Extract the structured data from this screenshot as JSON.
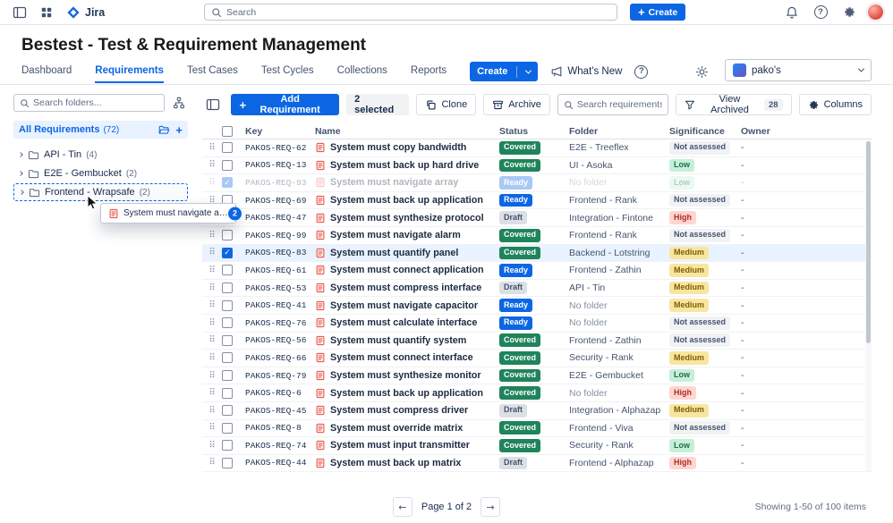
{
  "topnav": {
    "app_name": "Jira",
    "search_placeholder": "Search",
    "create_label": "Create"
  },
  "header": {
    "title": "Bestest - Test & Requirement Management",
    "tabs": [
      {
        "label": "Dashboard",
        "active": false
      },
      {
        "label": "Requirements",
        "active": true
      },
      {
        "label": "Test Cases",
        "active": false
      },
      {
        "label": "Test Cycles",
        "active": false
      },
      {
        "label": "Collections",
        "active": false
      },
      {
        "label": "Reports",
        "active": false
      }
    ],
    "create_label": "Create",
    "whats_new_label": "What's New",
    "profile_label": "pako's"
  },
  "sidebar": {
    "search_placeholder": "Search folders...",
    "root": {
      "label": "All Requirements",
      "count": "(72)"
    },
    "folders": [
      {
        "label": "API - Tin",
        "count": "(4)",
        "drop_target": false
      },
      {
        "label": "E2E - Gembucket",
        "count": "(2)",
        "drop_target": false
      },
      {
        "label": "Frontend - Wrapsafe",
        "count": "(2)",
        "drop_target": true
      }
    ],
    "drag_preview": {
      "label": "System must navigate ar...",
      "badge": "2"
    }
  },
  "toolbar": {
    "add_label": "Add Requirement",
    "selected_label": "2 selected",
    "clone_label": "Clone",
    "archive_label": "Archive",
    "search_placeholder": "Search requirements...",
    "view_archived_label": "View Archived",
    "view_archived_count": "28",
    "columns_label": "Columns"
  },
  "table": {
    "headers": {
      "key": "Key",
      "name": "Name",
      "status": "Status",
      "folder": "Folder",
      "significance": "Significance",
      "owner": "Owner"
    },
    "rows": [
      {
        "key": "PAKOS-REQ-62",
        "name": "System must copy bandwidth",
        "status": "Covered",
        "folder": "E2E - Treeflex",
        "significance": "Not assessed",
        "owner": "-"
      },
      {
        "key": "PAKOS-REQ-13",
        "name": "System must back up hard drive",
        "status": "Covered",
        "folder": "UI - Asoka",
        "significance": "Low",
        "owner": "-"
      },
      {
        "key": "PAKOS-REQ-93",
        "name": "System must navigate array",
        "status": "Ready",
        "folder": "No folder",
        "significance": "Low",
        "owner": "-",
        "checked": true,
        "ghost": true
      },
      {
        "key": "PAKOS-REQ-69",
        "name": "System must back up application",
        "status": "Ready",
        "folder": "Frontend - Rank",
        "significance": "Not assessed",
        "owner": "-"
      },
      {
        "key": "PAKOS-REQ-47",
        "name": "System must synthesize protocol",
        "status": "Draft",
        "folder": "Integration - Fintone",
        "significance": "High",
        "owner": "-"
      },
      {
        "key": "PAKOS-REQ-99",
        "name": "System must navigate alarm",
        "status": "Covered",
        "folder": "Frontend - Rank",
        "significance": "Not assessed",
        "owner": "-"
      },
      {
        "key": "PAKOS-REQ-83",
        "name": "System must quantify panel",
        "status": "Covered",
        "folder": "Backend - Lotstring",
        "significance": "Medium",
        "owner": "-",
        "checked": true,
        "selected": true
      },
      {
        "key": "PAKOS-REQ-61",
        "name": "System must connect application",
        "status": "Ready",
        "folder": "Frontend - Zathin",
        "significance": "Medium",
        "owner": "-"
      },
      {
        "key": "PAKOS-REQ-53",
        "name": "System must compress interface",
        "status": "Draft",
        "folder": "API - Tin",
        "significance": "Medium",
        "owner": "-"
      },
      {
        "key": "PAKOS-REQ-41",
        "name": "System must navigate capacitor",
        "status": "Ready",
        "folder": "No folder",
        "significance": "Medium",
        "owner": "-"
      },
      {
        "key": "PAKOS-REQ-76",
        "name": "System must calculate interface",
        "status": "Ready",
        "folder": "No folder",
        "significance": "Not assessed",
        "owner": "-"
      },
      {
        "key": "PAKOS-REQ-56",
        "name": "System must quantify system",
        "status": "Covered",
        "folder": "Frontend - Zathin",
        "significance": "Not assessed",
        "owner": "-"
      },
      {
        "key": "PAKOS-REQ-66",
        "name": "System must connect interface",
        "status": "Covered",
        "folder": "Security - Rank",
        "significance": "Medium",
        "owner": "-"
      },
      {
        "key": "PAKOS-REQ-79",
        "name": "System must synthesize monitor",
        "status": "Covered",
        "folder": "E2E - Gembucket",
        "significance": "Low",
        "owner": "-"
      },
      {
        "key": "PAKOS-REQ-6",
        "name": "System must back up application",
        "status": "Covered",
        "folder": "No folder",
        "significance": "High",
        "owner": "-"
      },
      {
        "key": "PAKOS-REQ-45",
        "name": "System must compress driver",
        "status": "Draft",
        "folder": "Integration - Alphazap",
        "significance": "Medium",
        "owner": "-"
      },
      {
        "key": "PAKOS-REQ-8",
        "name": "System must override matrix",
        "status": "Covered",
        "folder": "Frontend - Viva",
        "significance": "Not assessed",
        "owner": "-"
      },
      {
        "key": "PAKOS-REQ-74",
        "name": "System must input transmitter",
        "status": "Covered",
        "folder": "Security - Rank",
        "significance": "Low",
        "owner": "-"
      },
      {
        "key": "PAKOS-REQ-44",
        "name": "System must back up matrix",
        "status": "Draft",
        "folder": "Frontend - Alphazap",
        "significance": "High",
        "owner": "-"
      }
    ]
  },
  "pagination": {
    "label": "Page 1 of 2"
  },
  "footer": {
    "showing": "Showing 1-50 of 100 items"
  },
  "glyphs": {
    "plus": "+",
    "check": "✓",
    "question": "?",
    "drag": "⠿",
    "arrow_left": "←",
    "arrow_right": "→"
  },
  "colors": {
    "accent": "#0C66E4",
    "selected_row_bg": "#E9F2FF",
    "status": {
      "Covered": {
        "bg": "#1F845A",
        "fg": "#FFFFFF"
      },
      "Ready": {
        "bg": "#0C66E4",
        "fg": "#FFFFFF"
      },
      "Draft": {
        "bg": "#DCDFE4",
        "fg": "#44546F"
      }
    },
    "significance": {
      "Not assessed": {
        "bg": "#F1F2F4",
        "fg": "#44546F"
      },
      "Low": {
        "bg": "#C6EFD8",
        "fg": "#216E4E"
      },
      "Medium": {
        "bg": "#F8E6A0",
        "fg": "#7F5F01"
      },
      "High": {
        "bg": "#FFD5D2",
        "fg": "#AE2E24"
      }
    }
  }
}
